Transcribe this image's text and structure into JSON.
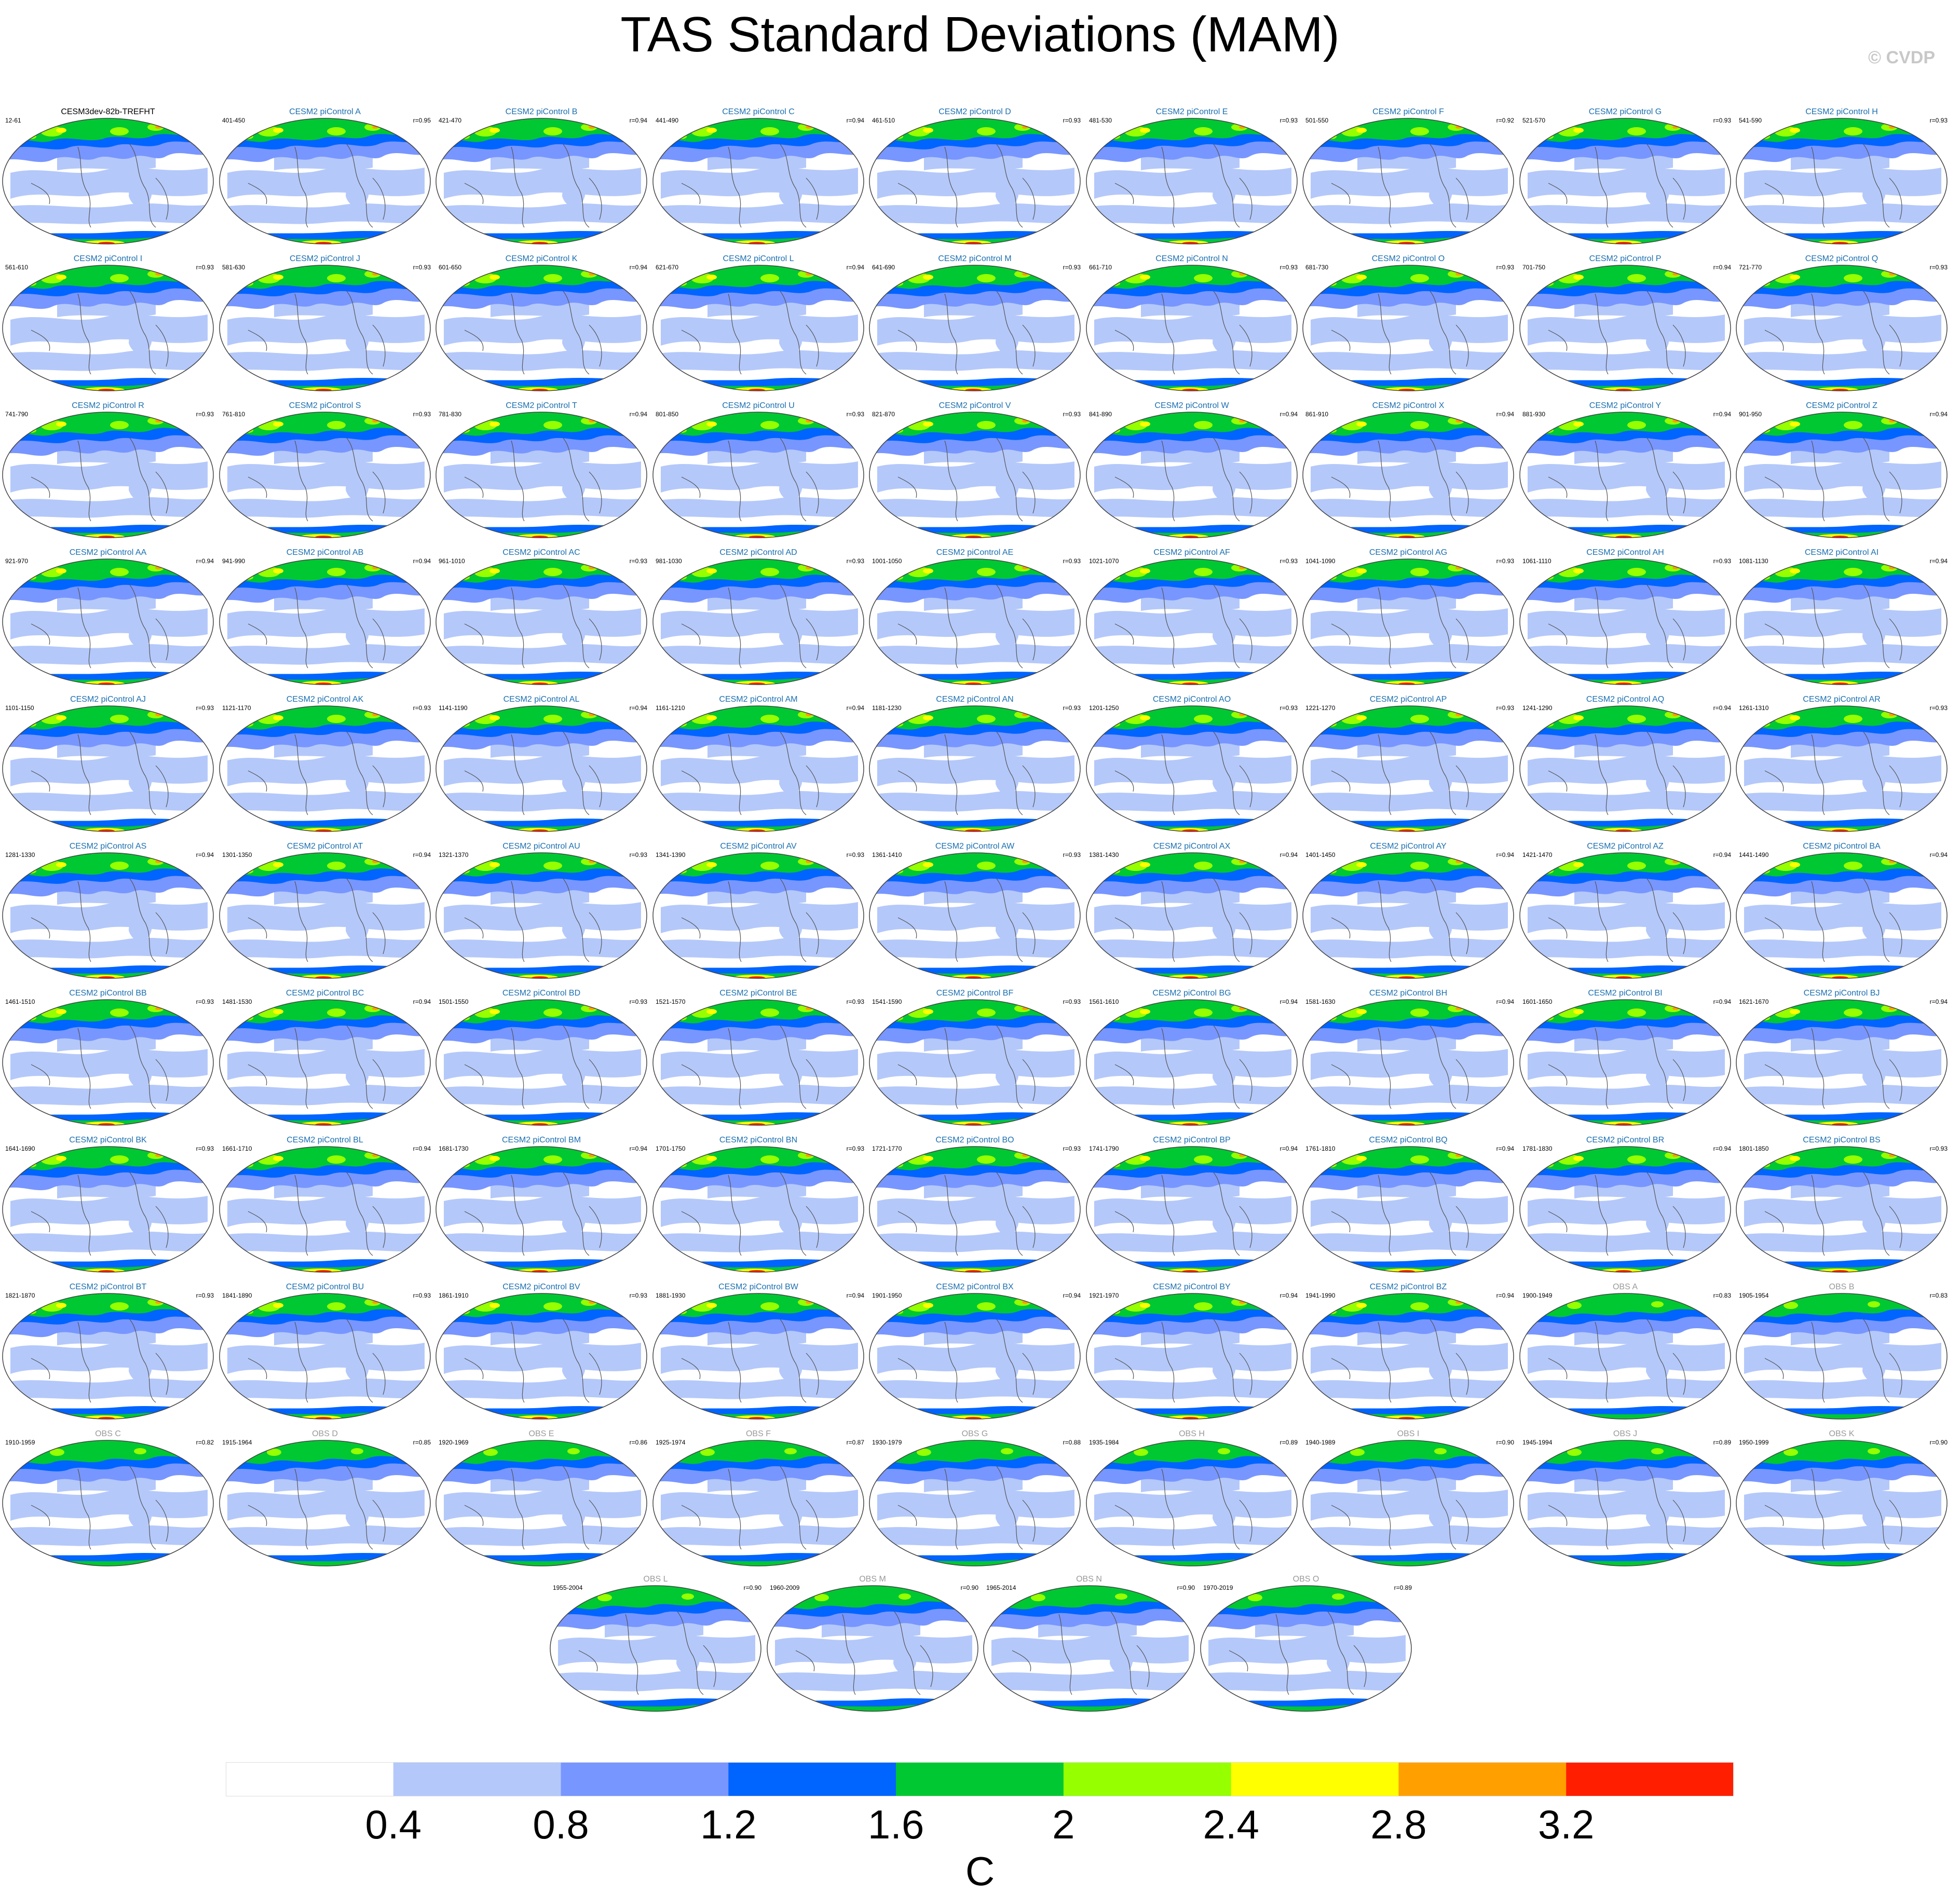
{
  "title": "TAS Standard Deviations (MAM)",
  "copyright": "© CVDP",
  "colors": {
    "model_title": "#1a6fb0",
    "obs_title": "#9a9a9a",
    "levels": [
      "#ffffff",
      "#b4c8fa",
      "#7896ff",
      "#0064ff",
      "#00c832",
      "#96ff00",
      "#ffff00",
      "#ffa000",
      "#ff1e00"
    ]
  },
  "colorbar": {
    "labels": [
      "0.4",
      "0.8",
      "1.2",
      "1.6",
      "2",
      "2.4",
      "2.8",
      "3.2"
    ],
    "unit": "C"
  },
  "panels": [
    {
      "title": "CESM3dev-82b-TREFHT",
      "range": "12-61",
      "corr": "",
      "kind": "ref"
    },
    {
      "title": "CESM2 piControl A",
      "range": "401-450",
      "corr": "r=0.95",
      "kind": "model"
    },
    {
      "title": "CESM2 piControl B",
      "range": "421-470",
      "corr": "r=0.94",
      "kind": "model"
    },
    {
      "title": "CESM2 piControl C",
      "range": "441-490",
      "corr": "r=0.94",
      "kind": "model"
    },
    {
      "title": "CESM2 piControl D",
      "range": "461-510",
      "corr": "r=0.93",
      "kind": "model"
    },
    {
      "title": "CESM2 piControl E",
      "range": "481-530",
      "corr": "r=0.93",
      "kind": "model"
    },
    {
      "title": "CESM2 piControl F",
      "range": "501-550",
      "corr": "r=0.92",
      "kind": "model"
    },
    {
      "title": "CESM2 piControl G",
      "range": "521-570",
      "corr": "r=0.93",
      "kind": "model"
    },
    {
      "title": "CESM2 piControl H",
      "range": "541-590",
      "corr": "r=0.93",
      "kind": "model"
    },
    {
      "title": "CESM2 piControl I",
      "range": "561-610",
      "corr": "r=0.93",
      "kind": "model"
    },
    {
      "title": "CESM2 piControl J",
      "range": "581-630",
      "corr": "r=0.93",
      "kind": "model"
    },
    {
      "title": "CESM2 piControl K",
      "range": "601-650",
      "corr": "r=0.94",
      "kind": "model"
    },
    {
      "title": "CESM2 piControl L",
      "range": "621-670",
      "corr": "r=0.94",
      "kind": "model"
    },
    {
      "title": "CESM2 piControl M",
      "range": "641-690",
      "corr": "r=0.93",
      "kind": "model"
    },
    {
      "title": "CESM2 piControl N",
      "range": "661-710",
      "corr": "r=0.93",
      "kind": "model"
    },
    {
      "title": "CESM2 piControl O",
      "range": "681-730",
      "corr": "r=0.93",
      "kind": "model"
    },
    {
      "title": "CESM2 piControl P",
      "range": "701-750",
      "corr": "r=0.94",
      "kind": "model"
    },
    {
      "title": "CESM2 piControl Q",
      "range": "721-770",
      "corr": "r=0.93",
      "kind": "model"
    },
    {
      "title": "CESM2 piControl R",
      "range": "741-790",
      "corr": "r=0.93",
      "kind": "model"
    },
    {
      "title": "CESM2 piControl S",
      "range": "761-810",
      "corr": "r=0.93",
      "kind": "model"
    },
    {
      "title": "CESM2 piControl T",
      "range": "781-830",
      "corr": "r=0.94",
      "kind": "model"
    },
    {
      "title": "CESM2 piControl U",
      "range": "801-850",
      "corr": "r=0.93",
      "kind": "model"
    },
    {
      "title": "CESM2 piControl V",
      "range": "821-870",
      "corr": "r=0.93",
      "kind": "model"
    },
    {
      "title": "CESM2 piControl W",
      "range": "841-890",
      "corr": "r=0.94",
      "kind": "model"
    },
    {
      "title": "CESM2 piControl X",
      "range": "861-910",
      "corr": "r=0.94",
      "kind": "model"
    },
    {
      "title": "CESM2 piControl Y",
      "range": "881-930",
      "corr": "r=0.94",
      "kind": "model"
    },
    {
      "title": "CESM2 piControl Z",
      "range": "901-950",
      "corr": "r=0.94",
      "kind": "model"
    },
    {
      "title": "CESM2 piControl AA",
      "range": "921-970",
      "corr": "r=0.94",
      "kind": "model"
    },
    {
      "title": "CESM2 piControl AB",
      "range": "941-990",
      "corr": "r=0.94",
      "kind": "model"
    },
    {
      "title": "CESM2 piControl AC",
      "range": "961-1010",
      "corr": "r=0.93",
      "kind": "model"
    },
    {
      "title": "CESM2 piControl AD",
      "range": "981-1030",
      "corr": "r=0.93",
      "kind": "model"
    },
    {
      "title": "CESM2 piControl AE",
      "range": "1001-1050",
      "corr": "r=0.93",
      "kind": "model"
    },
    {
      "title": "CESM2 piControl AF",
      "range": "1021-1070",
      "corr": "r=0.93",
      "kind": "model"
    },
    {
      "title": "CESM2 piControl AG",
      "range": "1041-1090",
      "corr": "r=0.93",
      "kind": "model"
    },
    {
      "title": "CESM2 piControl AH",
      "range": "1061-1110",
      "corr": "r=0.93",
      "kind": "model"
    },
    {
      "title": "CESM2 piControl AI",
      "range": "1081-1130",
      "corr": "r=0.94",
      "kind": "model"
    },
    {
      "title": "CESM2 piControl AJ",
      "range": "1101-1150",
      "corr": "r=0.93",
      "kind": "model"
    },
    {
      "title": "CESM2 piControl AK",
      "range": "1121-1170",
      "corr": "r=0.93",
      "kind": "model"
    },
    {
      "title": "CESM2 piControl AL",
      "range": "1141-1190",
      "corr": "r=0.94",
      "kind": "model"
    },
    {
      "title": "CESM2 piControl AM",
      "range": "1161-1210",
      "corr": "r=0.94",
      "kind": "model"
    },
    {
      "title": "CESM2 piControl AN",
      "range": "1181-1230",
      "corr": "r=0.93",
      "kind": "model"
    },
    {
      "title": "CESM2 piControl AO",
      "range": "1201-1250",
      "corr": "r=0.93",
      "kind": "model"
    },
    {
      "title": "CESM2 piControl AP",
      "range": "1221-1270",
      "corr": "r=0.93",
      "kind": "model"
    },
    {
      "title": "CESM2 piControl AQ",
      "range": "1241-1290",
      "corr": "r=0.94",
      "kind": "model"
    },
    {
      "title": "CESM2 piControl AR",
      "range": "1261-1310",
      "corr": "r=0.93",
      "kind": "model"
    },
    {
      "title": "CESM2 piControl AS",
      "range": "1281-1330",
      "corr": "r=0.94",
      "kind": "model"
    },
    {
      "title": "CESM2 piControl AT",
      "range": "1301-1350",
      "corr": "r=0.94",
      "kind": "model"
    },
    {
      "title": "CESM2 piControl AU",
      "range": "1321-1370",
      "corr": "r=0.93",
      "kind": "model"
    },
    {
      "title": "CESM2 piControl AV",
      "range": "1341-1390",
      "corr": "r=0.93",
      "kind": "model"
    },
    {
      "title": "CESM2 piControl AW",
      "range": "1361-1410",
      "corr": "r=0.93",
      "kind": "model"
    },
    {
      "title": "CESM2 piControl AX",
      "range": "1381-1430",
      "corr": "r=0.94",
      "kind": "model"
    },
    {
      "title": "CESM2 piControl AY",
      "range": "1401-1450",
      "corr": "r=0.94",
      "kind": "model"
    },
    {
      "title": "CESM2 piControl AZ",
      "range": "1421-1470",
      "corr": "r=0.94",
      "kind": "model"
    },
    {
      "title": "CESM2 piControl BA",
      "range": "1441-1490",
      "corr": "r=0.94",
      "kind": "model"
    },
    {
      "title": "CESM2 piControl BB",
      "range": "1461-1510",
      "corr": "r=0.93",
      "kind": "model"
    },
    {
      "title": "CESM2 piControl BC",
      "range": "1481-1530",
      "corr": "r=0.94",
      "kind": "model"
    },
    {
      "title": "CESM2 piControl BD",
      "range": "1501-1550",
      "corr": "r=0.93",
      "kind": "model"
    },
    {
      "title": "CESM2 piControl BE",
      "range": "1521-1570",
      "corr": "r=0.93",
      "kind": "model"
    },
    {
      "title": "CESM2 piControl BF",
      "range": "1541-1590",
      "corr": "r=0.93",
      "kind": "model"
    },
    {
      "title": "CESM2 piControl BG",
      "range": "1561-1610",
      "corr": "r=0.94",
      "kind": "model"
    },
    {
      "title": "CESM2 piControl BH",
      "range": "1581-1630",
      "corr": "r=0.94",
      "kind": "model"
    },
    {
      "title": "CESM2 piControl BI",
      "range": "1601-1650",
      "corr": "r=0.94",
      "kind": "model"
    },
    {
      "title": "CESM2 piControl BJ",
      "range": "1621-1670",
      "corr": "r=0.94",
      "kind": "model"
    },
    {
      "title": "CESM2 piControl BK",
      "range": "1641-1690",
      "corr": "r=0.93",
      "kind": "model"
    },
    {
      "title": "CESM2 piControl BL",
      "range": "1661-1710",
      "corr": "r=0.94",
      "kind": "model"
    },
    {
      "title": "CESM2 piControl BM",
      "range": "1681-1730",
      "corr": "r=0.94",
      "kind": "model"
    },
    {
      "title": "CESM2 piControl BN",
      "range": "1701-1750",
      "corr": "r=0.93",
      "kind": "model"
    },
    {
      "title": "CESM2 piControl BO",
      "range": "1721-1770",
      "corr": "r=0.93",
      "kind": "model"
    },
    {
      "title": "CESM2 piControl BP",
      "range": "1741-1790",
      "corr": "r=0.94",
      "kind": "model"
    },
    {
      "title": "CESM2 piControl BQ",
      "range": "1761-1810",
      "corr": "r=0.94",
      "kind": "model"
    },
    {
      "title": "CESM2 piControl BR",
      "range": "1781-1830",
      "corr": "r=0.94",
      "kind": "model"
    },
    {
      "title": "CESM2 piControl BS",
      "range": "1801-1850",
      "corr": "r=0.93",
      "kind": "model"
    },
    {
      "title": "CESM2 piControl BT",
      "range": "1821-1870",
      "corr": "r=0.93",
      "kind": "model"
    },
    {
      "title": "CESM2 piControl BU",
      "range": "1841-1890",
      "corr": "r=0.93",
      "kind": "model"
    },
    {
      "title": "CESM2 piControl BV",
      "range": "1861-1910",
      "corr": "r=0.93",
      "kind": "model"
    },
    {
      "title": "CESM2 piControl BW",
      "range": "1881-1930",
      "corr": "r=0.94",
      "kind": "model"
    },
    {
      "title": "CESM2 piControl BX",
      "range": "1901-1950",
      "corr": "r=0.94",
      "kind": "model"
    },
    {
      "title": "CESM2 piControl BY",
      "range": "1921-1970",
      "corr": "r=0.94",
      "kind": "model"
    },
    {
      "title": "CESM2 piControl BZ",
      "range": "1941-1990",
      "corr": "r=0.94",
      "kind": "model"
    },
    {
      "title": "OBS A",
      "range": "1900-1949",
      "corr": "r=0.83",
      "kind": "obs"
    },
    {
      "title": "OBS B",
      "range": "1905-1954",
      "corr": "r=0.83",
      "kind": "obs"
    },
    {
      "title": "OBS C",
      "range": "1910-1959",
      "corr": "r=0.82",
      "kind": "obs"
    },
    {
      "title": "OBS D",
      "range": "1915-1964",
      "corr": "r=0.85",
      "kind": "obs"
    },
    {
      "title": "OBS E",
      "range": "1920-1969",
      "corr": "r=0.86",
      "kind": "obs"
    },
    {
      "title": "OBS F",
      "range": "1925-1974",
      "corr": "r=0.87",
      "kind": "obs"
    },
    {
      "title": "OBS G",
      "range": "1930-1979",
      "corr": "r=0.88",
      "kind": "obs"
    },
    {
      "title": "OBS H",
      "range": "1935-1984",
      "corr": "r=0.89",
      "kind": "obs"
    },
    {
      "title": "OBS I",
      "range": "1940-1989",
      "corr": "r=0.90",
      "kind": "obs"
    },
    {
      "title": "OBS J",
      "range": "1945-1994",
      "corr": "r=0.89",
      "kind": "obs"
    },
    {
      "title": "OBS K",
      "range": "1950-1999",
      "corr": "r=0.90",
      "kind": "obs"
    },
    {
      "title": "OBS L",
      "range": "1955-2004",
      "corr": "r=0.90",
      "kind": "obs"
    },
    {
      "title": "OBS M",
      "range": "1960-2009",
      "corr": "r=0.90",
      "kind": "obs"
    },
    {
      "title": "OBS N",
      "range": "1965-2014",
      "corr": "r=0.90",
      "kind": "obs"
    },
    {
      "title": "OBS O",
      "range": "1970-2019",
      "corr": "r=0.89",
      "kind": "obs"
    }
  ]
}
